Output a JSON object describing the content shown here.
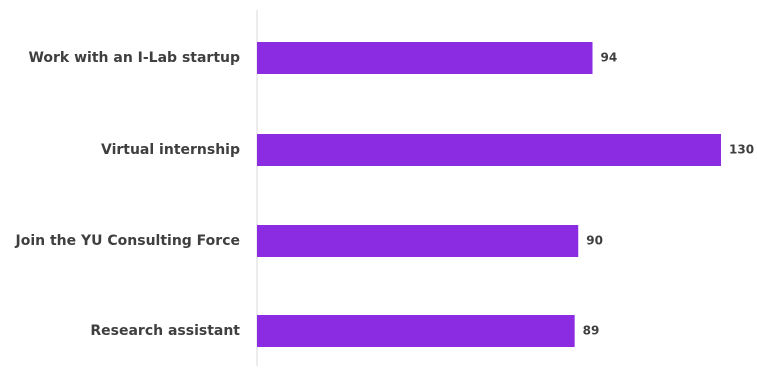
{
  "chart_data": {
    "type": "bar",
    "orientation": "horizontal",
    "title": "",
    "xlabel": "",
    "ylabel": "",
    "categories": [
      "Work with an I-Lab startup",
      "Virtual internship",
      "Join the YU Consulting Force",
      "Research assistant"
    ],
    "values": [
      94,
      130,
      90,
      89
    ],
    "xlim": [
      0,
      130
    ],
    "grid": false,
    "legend": "none",
    "bar_color": "#8B2BE2",
    "axis_color": "#d9d9d9",
    "label_color": "#3f3f3f"
  }
}
